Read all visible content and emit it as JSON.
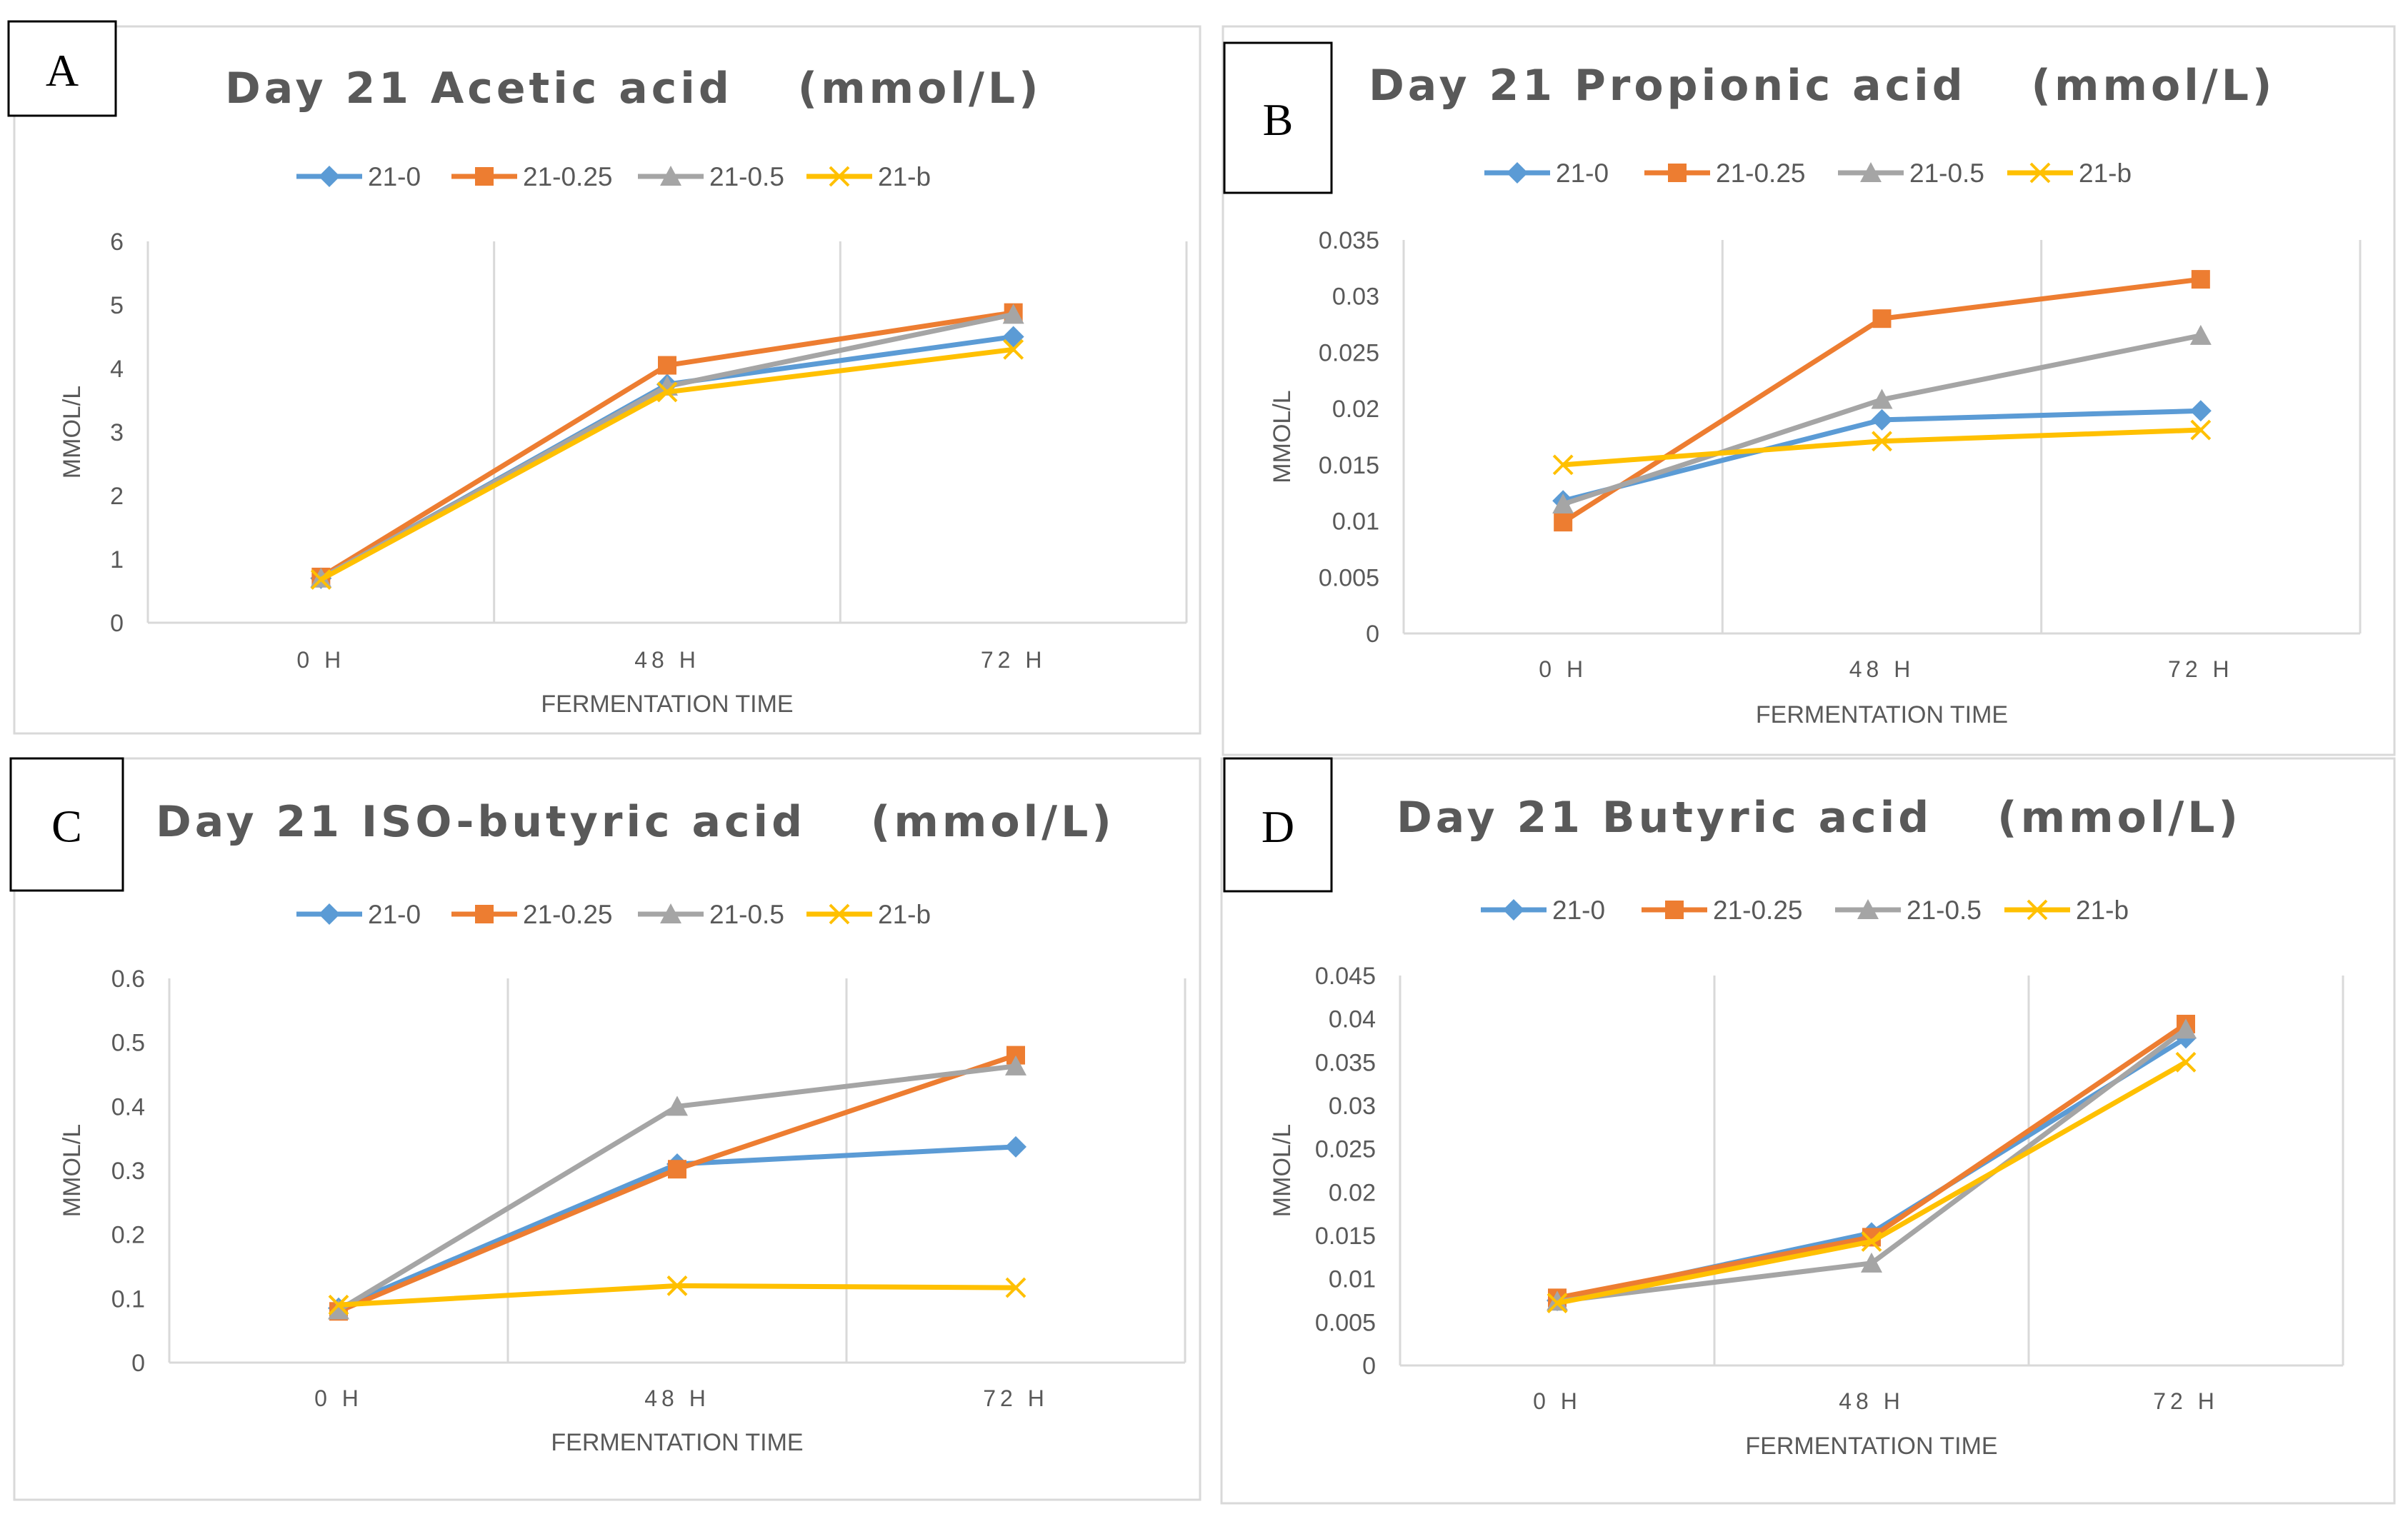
{
  "colors": {
    "21-0": "#5b9bd5",
    "21-0.25": "#ed7d31",
    "21-0.5": "#a5a5a5",
    "21-b": "#ffc000"
  },
  "chart_data": [
    {
      "letter": "A",
      "type": "line",
      "title": "Day 21 Acetic acid 　(mmol/L)",
      "xlabel": "FERMENTATION TIME",
      "ylabel": "MMOL/L",
      "categories": [
        "0 H",
        "48 H",
        "72 H"
      ],
      "ylim": [
        0,
        6
      ],
      "yticks": [
        "0",
        "1",
        "2",
        "3",
        "4",
        "5",
        "6"
      ],
      "grid": "vertical",
      "legend": "top",
      "series": [
        {
          "name": "21-0",
          "marker": "diamond",
          "values": [
            0.7,
            3.75,
            4.5
          ]
        },
        {
          "name": "21-0.25",
          "marker": "square",
          "values": [
            0.72,
            4.05,
            4.88
          ]
        },
        {
          "name": "21-0.5",
          "marker": "triangle",
          "values": [
            0.7,
            3.72,
            4.85
          ]
        },
        {
          "name": "21-b",
          "marker": "x",
          "values": [
            0.68,
            3.63,
            4.3
          ]
        }
      ]
    },
    {
      "letter": "B",
      "type": "line",
      "title": "Day 21 Propionic acid 　(mmol/L)",
      "xlabel": "FERMENTATION TIME",
      "ylabel": "MMOL/L",
      "categories": [
        "0 H",
        "48 H",
        "72 H"
      ],
      "ylim": [
        0,
        0.035
      ],
      "yticks": [
        "0",
        "0.005",
        "0.01",
        "0.015",
        "0.02",
        "0.025",
        "0.03",
        "0.035"
      ],
      "grid": "vertical",
      "legend": "top",
      "series": [
        {
          "name": "21-0",
          "marker": "diamond",
          "values": [
            0.0118,
            0.019,
            0.0198
          ]
        },
        {
          "name": "21-0.25",
          "marker": "square",
          "values": [
            0.0099,
            0.028,
            0.0315
          ]
        },
        {
          "name": "21-0.5",
          "marker": "triangle",
          "values": [
            0.0115,
            0.0208,
            0.0265
          ]
        },
        {
          "name": "21-b",
          "marker": "x",
          "values": [
            0.015,
            0.0171,
            0.0181
          ]
        }
      ]
    },
    {
      "letter": "C",
      "type": "line",
      "title": "Day 21 ISO-butyric acid 　(mmol/L)",
      "xlabel": "FERMENTATION TIME",
      "ylabel": "MMOL/L",
      "categories": [
        "0 H",
        "48 H",
        "72 H"
      ],
      "ylim": [
        0,
        0.6
      ],
      "yticks": [
        "0",
        "0.1",
        "0.2",
        "0.3",
        "0.4",
        "0.5",
        "0.6"
      ],
      "grid": "vertical",
      "legend": "top",
      "series": [
        {
          "name": "21-0",
          "marker": "diamond",
          "values": [
            0.085,
            0.31,
            0.337
          ]
        },
        {
          "name": "21-0.25",
          "marker": "square",
          "values": [
            0.08,
            0.302,
            0.48
          ]
        },
        {
          "name": "21-0.5",
          "marker": "triangle",
          "values": [
            0.082,
            0.4,
            0.463
          ]
        },
        {
          "name": "21-b",
          "marker": "x",
          "values": [
            0.09,
            0.12,
            0.117
          ]
        }
      ]
    },
    {
      "letter": "D",
      "type": "line",
      "title": "Day 21 Butyric acid 　(mmol/L)",
      "xlabel": "FERMENTATION TIME",
      "ylabel": "MMOL/L",
      "categories": [
        "0 H",
        "48 H",
        "72 H"
      ],
      "ylim": [
        0,
        0.045
      ],
      "yticks": [
        "0",
        "0.005",
        "0.01",
        "0.015",
        "0.02",
        "0.025",
        "0.03",
        "0.035",
        "0.04",
        "0.045"
      ],
      "grid": "vertical",
      "legend": "top",
      "series": [
        {
          "name": "21-0",
          "marker": "diamond",
          "values": [
            0.0075,
            0.0153,
            0.0378
          ]
        },
        {
          "name": "21-0.25",
          "marker": "square",
          "values": [
            0.0078,
            0.0148,
            0.0394
          ]
        },
        {
          "name": "21-0.5",
          "marker": "triangle",
          "values": [
            0.0074,
            0.0118,
            0.0388
          ]
        },
        {
          "name": "21-b",
          "marker": "x",
          "values": [
            0.0072,
            0.0143,
            0.035
          ]
        }
      ]
    }
  ]
}
